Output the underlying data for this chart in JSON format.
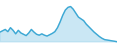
{
  "x": [
    0,
    1,
    2,
    3,
    4,
    5,
    6,
    7,
    8,
    9,
    10,
    11,
    12,
    13,
    14,
    15,
    16,
    17,
    18,
    19,
    20,
    21,
    22,
    23,
    24,
    25,
    26,
    27,
    28,
    29,
    30,
    31,
    32,
    33,
    34,
    35,
    36,
    37,
    38,
    39,
    40,
    41,
    42,
    43,
    44,
    45
  ],
  "y": [
    4.2,
    4.5,
    4.8,
    4.3,
    5.2,
    4.6,
    3.8,
    4.6,
    4.0,
    3.7,
    3.4,
    4.0,
    4.8,
    4.2,
    3.7,
    3.5,
    3.8,
    3.5,
    3.3,
    3.6,
    3.9,
    4.3,
    5.2,
    6.5,
    8.0,
    9.2,
    9.8,
    10.0,
    9.4,
    8.5,
    7.6,
    7.2,
    6.8,
    6.0,
    5.4,
    4.8,
    4.2,
    3.7,
    3.2,
    2.8,
    2.5,
    2.4,
    2.3,
    2.2,
    2.1,
    2.0
  ],
  "line_color": "#3ca8d4",
  "fill_color": "#a8d8ee",
  "background_color": "#ffffff",
  "linewidth": 1.0,
  "fill_alpha": 0.6
}
